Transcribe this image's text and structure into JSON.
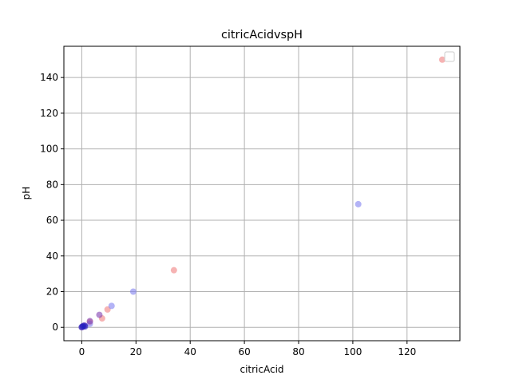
{
  "chart_data": {
    "type": "scatter",
    "title": "citricAcidvspH",
    "xlabel": "citricAcid",
    "ylabel": "pH",
    "xlim": [
      -6.6,
      139.5
    ],
    "ylim": [
      -7.5,
      157.5
    ],
    "xticks": [
      0,
      20,
      40,
      60,
      80,
      100,
      120
    ],
    "yticks": [
      0,
      20,
      40,
      60,
      80,
      100,
      120,
      140
    ],
    "grid": true,
    "legend": {
      "position": "top-right",
      "entries": []
    },
    "series": [
      {
        "color": "#f08080",
        "points": [
          {
            "x": 133,
            "y": 150
          },
          {
            "x": 34,
            "y": 32
          },
          {
            "x": 9.5,
            "y": 10
          },
          {
            "x": 7.5,
            "y": 5
          },
          {
            "x": 3,
            "y": 3
          },
          {
            "x": 0.5,
            "y": 0.5
          },
          {
            "x": 0,
            "y": 0
          }
        ]
      },
      {
        "color": "#8080f0",
        "points": [
          {
            "x": 102,
            "y": 69
          },
          {
            "x": 19,
            "y": 20
          },
          {
            "x": 11,
            "y": 12
          },
          {
            "x": 3,
            "y": 2
          },
          {
            "x": 1,
            "y": 1
          },
          {
            "x": 0,
            "y": 0
          }
        ]
      },
      {
        "color": "#8040b0",
        "points": [
          {
            "x": 6.5,
            "y": 7
          },
          {
            "x": 3,
            "y": 3.5
          },
          {
            "x": 1,
            "y": 1
          },
          {
            "x": 0.3,
            "y": 0.3
          }
        ]
      },
      {
        "color": "#2020c0",
        "points": [
          {
            "x": 0,
            "y": 0.2
          },
          {
            "x": 0.5,
            "y": 0.8
          },
          {
            "x": 1.2,
            "y": 0.5
          }
        ]
      }
    ]
  }
}
